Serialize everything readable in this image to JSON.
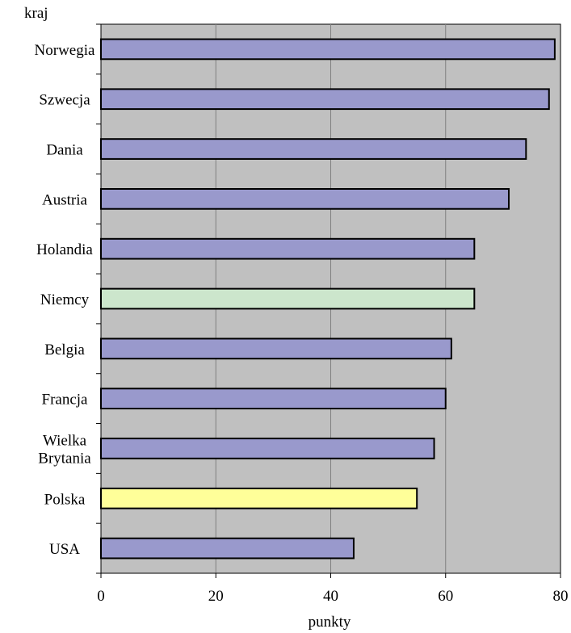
{
  "chart_data": {
    "type": "bar",
    "orientation": "horizontal",
    "ylabel": "kraj",
    "xlabel": "punkty",
    "xlim": [
      0,
      80
    ],
    "xticks": [
      0,
      20,
      40,
      60,
      80
    ],
    "grid": "vertical",
    "categories": [
      {
        "label": "Norwegia",
        "lines": [
          "Norwegia"
        ],
        "value": 79,
        "color": "#9999cc"
      },
      {
        "label": "Szwecja",
        "lines": [
          "Szwecja"
        ],
        "value": 78,
        "color": "#9999cc"
      },
      {
        "label": "Dania",
        "lines": [
          "Dania"
        ],
        "value": 74,
        "color": "#9999cc"
      },
      {
        "label": "Austria",
        "lines": [
          "Austria"
        ],
        "value": 71,
        "color": "#9999cc"
      },
      {
        "label": "Holandia",
        "lines": [
          "Holandia"
        ],
        "value": 65,
        "color": "#9999cc"
      },
      {
        "label": "Niemcy",
        "lines": [
          "Niemcy"
        ],
        "value": 65,
        "color": "#cce6cc"
      },
      {
        "label": "Belgia",
        "lines": [
          "Belgia"
        ],
        "value": 61,
        "color": "#9999cc"
      },
      {
        "label": "Francja",
        "lines": [
          "Francja"
        ],
        "value": 60,
        "color": "#9999cc"
      },
      {
        "label": "Wielka Brytania",
        "lines": [
          "Wielka",
          "Brytania"
        ],
        "value": 58,
        "color": "#9999cc"
      },
      {
        "label": "Polska",
        "lines": [
          "Polska"
        ],
        "value": 55,
        "color": "#ffff99"
      },
      {
        "label": "USA",
        "lines": [
          "USA"
        ],
        "value": 44,
        "color": "#9999cc"
      }
    ],
    "colors": {
      "plot_background": "#c0c0c0",
      "grid": "#808080",
      "bar_outline": "#000000"
    }
  }
}
